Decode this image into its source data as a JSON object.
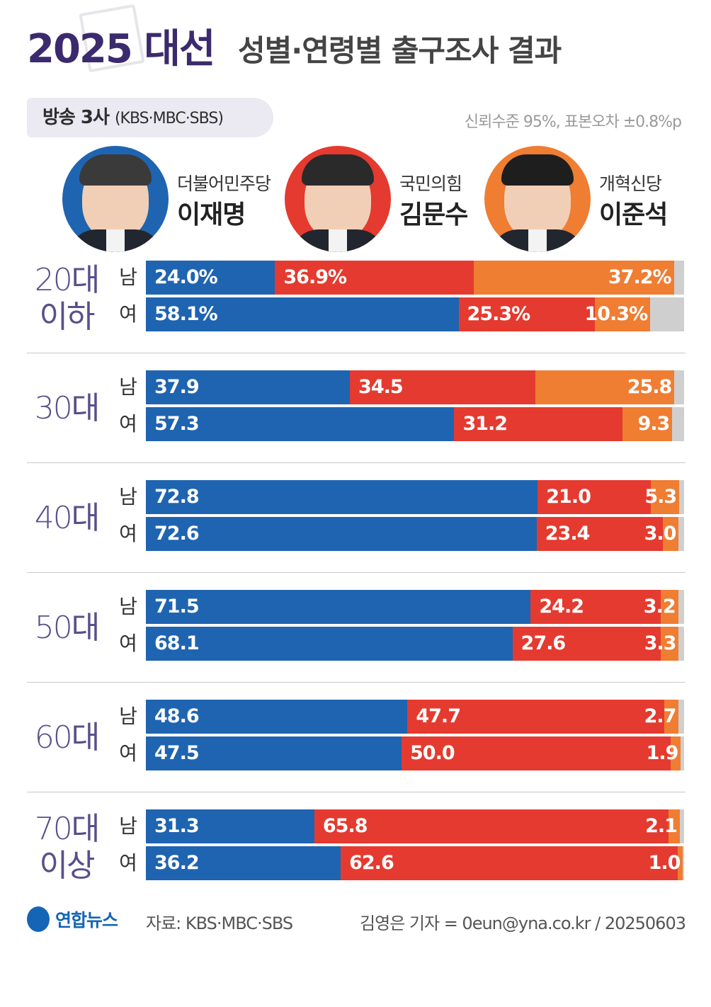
{
  "header": {
    "title_strong": "2025 대선",
    "title_rest": "성별·연령별 출구조사 결과",
    "source_main": "방송 3사",
    "source_detail": "(KBS·MBC·SBS)",
    "confidence_note": "신뢰수준 95%, 표본오차 ±0.8%p"
  },
  "candidates": [
    {
      "party": "더불어민주당",
      "name": "이재명",
      "color": "#1f64b0"
    },
    {
      "party": "국민의힘",
      "name": "김문수",
      "color": "#e53a2f"
    },
    {
      "party": "개혁신당",
      "name": "이준석",
      "color": "#ef7d32"
    }
  ],
  "chart_data": {
    "type": "bar",
    "stacked": true,
    "orientation": "horizontal",
    "xlim": [
      0,
      100
    ],
    "series_colors": [
      "#1f64b0",
      "#e53a2f",
      "#ef7d32"
    ],
    "remainder_color": "#cfcfcf",
    "groups": [
      {
        "age_lines": [
          "20대",
          "이하"
        ],
        "rows": [
          {
            "sex": "남",
            "values": [
              24.0,
              36.9,
              37.2
            ],
            "labels": [
              "24.0%",
              "36.9%",
              "37.2%"
            ]
          },
          {
            "sex": "여",
            "values": [
              58.1,
              25.3,
              10.3
            ],
            "labels": [
              "58.1%",
              "25.3%",
              "10.3%"
            ]
          }
        ]
      },
      {
        "age_lines": [
          "30대"
        ],
        "rows": [
          {
            "sex": "남",
            "values": [
              37.9,
              34.5,
              25.8
            ],
            "labels": [
              "37.9",
              "34.5",
              "25.8"
            ]
          },
          {
            "sex": "여",
            "values": [
              57.3,
              31.2,
              9.3
            ],
            "labels": [
              "57.3",
              "31.2",
              "9.3"
            ]
          }
        ]
      },
      {
        "age_lines": [
          "40대"
        ],
        "rows": [
          {
            "sex": "남",
            "values": [
              72.8,
              21.0,
              5.3
            ],
            "labels": [
              "72.8",
              "21.0",
              "5.3"
            ]
          },
          {
            "sex": "여",
            "values": [
              72.6,
              23.4,
              3.0
            ],
            "labels": [
              "72.6",
              "23.4",
              "3.0"
            ]
          }
        ]
      },
      {
        "age_lines": [
          "50대"
        ],
        "rows": [
          {
            "sex": "남",
            "values": [
              71.5,
              24.2,
              3.2
            ],
            "labels": [
              "71.5",
              "24.2",
              "3.2"
            ]
          },
          {
            "sex": "여",
            "values": [
              68.1,
              27.6,
              3.3
            ],
            "labels": [
              "68.1",
              "27.6",
              "3.3"
            ]
          }
        ]
      },
      {
        "age_lines": [
          "60대"
        ],
        "rows": [
          {
            "sex": "남",
            "values": [
              48.6,
              47.7,
              2.7
            ],
            "labels": [
              "48.6",
              "47.7",
              "2.7"
            ]
          },
          {
            "sex": "여",
            "values": [
              47.5,
              50.0,
              1.9
            ],
            "labels": [
              "47.5",
              "50.0",
              "1.9"
            ]
          }
        ]
      },
      {
        "age_lines": [
          "70대",
          "이상"
        ],
        "rows": [
          {
            "sex": "남",
            "values": [
              31.3,
              65.8,
              2.1
            ],
            "labels": [
              "31.3",
              "65.8",
              "2.1"
            ]
          },
          {
            "sex": "여",
            "values": [
              36.2,
              62.6,
              1.0
            ],
            "labels": [
              "36.2",
              "62.6",
              "1.0"
            ]
          }
        ]
      }
    ]
  },
  "footer": {
    "logo": "연합뉴스",
    "source": "자료: KBS·MBC·SBS",
    "credit": "김영은 기자 = 0eun@yna.co.kr / 20250603"
  }
}
